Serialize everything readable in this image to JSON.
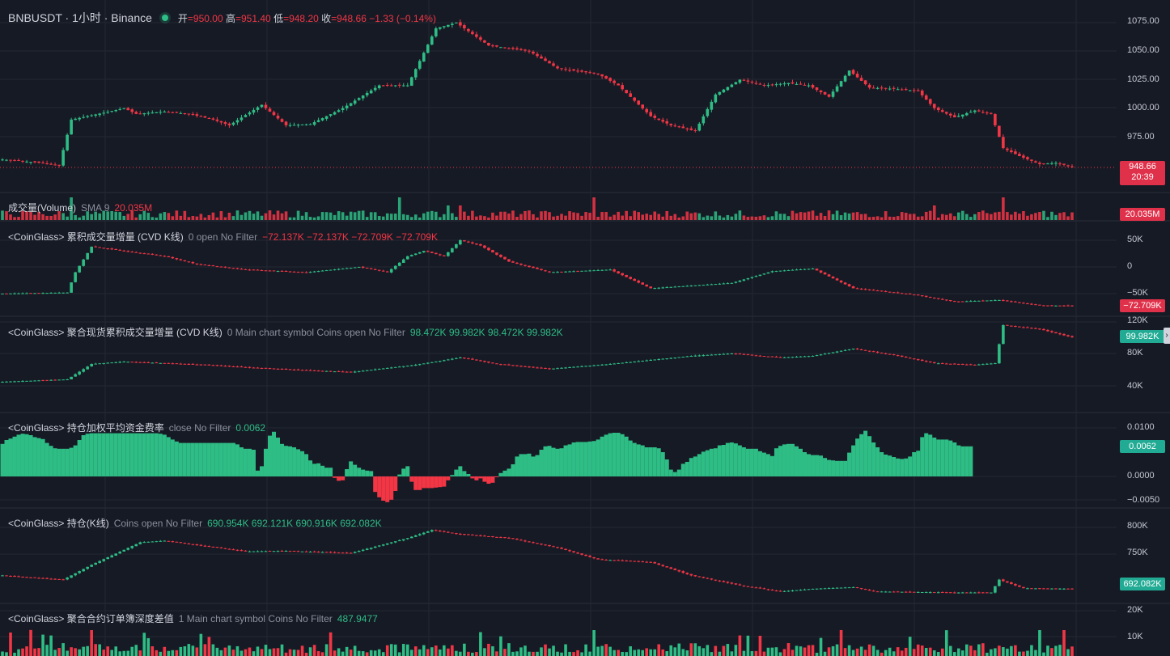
{
  "header": {
    "symbol": "BNBUSDT · 1小时 · Binance",
    "ohlc": [
      {
        "k": "开",
        "v": "=950.00"
      },
      {
        "k": "高",
        "v": "=951.40"
      },
      {
        "k": "低",
        "v": "=948.20"
      },
      {
        "k": "收",
        "v": "=948.66"
      }
    ],
    "change": "−1.33 (−0.14%)"
  },
  "price_pane": {
    "ticks": [
      "1075.00",
      "1050.00",
      "1025.00",
      "1000.00",
      "975.00"
    ],
    "last_price": "948.66",
    "countdown": "20:39"
  },
  "volume_pane": {
    "label": "成交量(Volume)",
    "sma": "SMA 9",
    "value": "20.035M",
    "tag": "20.035M"
  },
  "cvd_pane": {
    "label": "<CoinGlass> 累积成交量增量   (CVD K线)",
    "params": "0 open No Filter",
    "values": "−72.137K  −72.137K  −72.709K  −72.709K",
    "ticks": [
      "50K",
      "0",
      "−50K"
    ],
    "tag": "−72.709K"
  },
  "spot_cvd_pane": {
    "label": "<CoinGlass> 聚合现货累积成交量增量 (CVD K线)",
    "params": "0 Main chart symbol Coins open No Filter",
    "values": "98.472K  99.982K  98.472K  99.982K",
    "ticks": [
      "120K",
      "80K",
      "40K"
    ],
    "tag": "99.982K"
  },
  "funding_pane": {
    "label": "<CoinGlass> 持仓加权平均资金费率",
    "params": "close No Filter",
    "value": "0.0062",
    "ticks": [
      "0.0100",
      "0.0000",
      "−0.0050"
    ],
    "tag": "0.0062"
  },
  "oi_pane": {
    "label": "<CoinGlass> 持仓(K线)",
    "params": "Coins open No Filter",
    "values": "690.954K  692.121K  690.916K  692.082K",
    "ticks": [
      "800K",
      "750K"
    ],
    "tag": "692.082K"
  },
  "depth_pane": {
    "label": "<CoinGlass> 聚合合约订单簿深度差值",
    "params": "1 Main chart symbol Coins No Filter",
    "value": "487.9477",
    "ticks": [
      "20K",
      "10K"
    ]
  },
  "colors": {
    "up": "#2ebd85",
    "down": "#f23645",
    "bg": "#161a25",
    "grid": "#242833"
  },
  "chart_data": {
    "type": "candlestick",
    "price_anchors": [
      [
        0,
        955
      ],
      [
        10,
        952
      ],
      [
        14,
        950
      ],
      [
        17,
        990
      ],
      [
        25,
        996
      ],
      [
        30,
        1000
      ],
      [
        33,
        995
      ],
      [
        40,
        997
      ],
      [
        46,
        995
      ],
      [
        52,
        990
      ],
      [
        56,
        985
      ],
      [
        64,
        1003
      ],
      [
        70,
        985
      ],
      [
        76,
        986
      ],
      [
        84,
        1000
      ],
      [
        93,
        1020
      ],
      [
        100,
        1020
      ],
      [
        107,
        1070
      ],
      [
        112,
        1075
      ],
      [
        120,
        1055
      ],
      [
        130,
        1050
      ],
      [
        137,
        1035
      ],
      [
        147,
        1030
      ],
      [
        152,
        1020
      ],
      [
        160,
        993
      ],
      [
        165,
        985
      ],
      [
        171,
        980
      ],
      [
        176,
        1012
      ],
      [
        182,
        1025
      ],
      [
        188,
        1020
      ],
      [
        194,
        1022
      ],
      [
        199,
        1020
      ],
      [
        204,
        1010
      ],
      [
        209,
        1033
      ],
      [
        214,
        1018
      ],
      [
        220,
        1017
      ],
      [
        226,
        1015
      ],
      [
        230,
        1000
      ],
      [
        235,
        992
      ],
      [
        240,
        998
      ],
      [
        244,
        995
      ],
      [
        247,
        965
      ],
      [
        251,
        958
      ],
      [
        256,
        951
      ],
      [
        260,
        952
      ],
      [
        264,
        948.66
      ]
    ],
    "cvd_anchors": [
      [
        0,
        -50
      ],
      [
        16,
        -48
      ],
      [
        18,
        -10
      ],
      [
        22,
        38
      ],
      [
        30,
        30
      ],
      [
        40,
        20
      ],
      [
        48,
        5
      ],
      [
        60,
        -5
      ],
      [
        75,
        -10
      ],
      [
        88,
        0
      ],
      [
        95,
        -10
      ],
      [
        100,
        20
      ],
      [
        104,
        30
      ],
      [
        109,
        20
      ],
      [
        113,
        50
      ],
      [
        118,
        40
      ],
      [
        125,
        10
      ],
      [
        135,
        -10
      ],
      [
        150,
        -5
      ],
      [
        160,
        -40
      ],
      [
        170,
        -35
      ],
      [
        180,
        -30
      ],
      [
        190,
        -8
      ],
      [
        200,
        -3
      ],
      [
        210,
        -40
      ],
      [
        225,
        -52
      ],
      [
        235,
        -65
      ],
      [
        246,
        -62
      ],
      [
        256,
        -72
      ],
      [
        264,
        -72.709
      ]
    ],
    "spot_cvd_anchors": [
      [
        0,
        45
      ],
      [
        16,
        48
      ],
      [
        22,
        67
      ],
      [
        30,
        70
      ],
      [
        40,
        68
      ],
      [
        50,
        66
      ],
      [
        60,
        63
      ],
      [
        72,
        60
      ],
      [
        86,
        57
      ],
      [
        102,
        66
      ],
      [
        113,
        75
      ],
      [
        122,
        67
      ],
      [
        135,
        61
      ],
      [
        150,
        67
      ],
      [
        170,
        77
      ],
      [
        180,
        80
      ],
      [
        192,
        75
      ],
      [
        200,
        77
      ],
      [
        210,
        86
      ],
      [
        220,
        78
      ],
      [
        230,
        68
      ],
      [
        240,
        66
      ],
      [
        245,
        68
      ],
      [
        247,
        115
      ],
      [
        256,
        110
      ],
      [
        264,
        99.982
      ]
    ],
    "oi_anchors": [
      [
        0,
        710
      ],
      [
        15,
        702
      ],
      [
        22,
        730
      ],
      [
        34,
        772
      ],
      [
        40,
        775
      ],
      [
        50,
        765
      ],
      [
        60,
        755
      ],
      [
        70,
        756
      ],
      [
        86,
        752
      ],
      [
        100,
        780
      ],
      [
        106,
        795
      ],
      [
        112,
        788
      ],
      [
        125,
        780
      ],
      [
        137,
        762
      ],
      [
        147,
        740
      ],
      [
        160,
        735
      ],
      [
        170,
        710
      ],
      [
        183,
        690
      ],
      [
        192,
        680
      ],
      [
        200,
        685
      ],
      [
        210,
        688
      ],
      [
        215,
        680
      ],
      [
        235,
        678
      ],
      [
        244,
        678
      ],
      [
        246,
        702
      ],
      [
        252,
        686
      ],
      [
        264,
        685
      ]
    ],
    "funding_values": [
      0.0067,
      0.0075,
      0.0078,
      0.0082,
      0.0086,
      0.0088,
      0.0087,
      0.0085,
      0.0081,
      0.0079,
      0.0077,
      0.0069,
      0.0063,
      0.0058,
      0.0057,
      0.0057,
      0.0057,
      0.0059,
      0.0064,
      0.0075,
      0.0085,
      0.0088,
      0.0089,
      0.0089,
      0.0089,
      0.0089,
      0.0089,
      0.0089,
      0.0089,
      0.0089,
      0.0089,
      0.0089,
      0.0089,
      0.0089,
      0.0089,
      0.0089,
      0.0089,
      0.0089,
      0.0089,
      0.0088,
      0.0086,
      0.0081,
      0.0076,
      0.0072,
      0.0069,
      0.0069,
      0.0069,
      0.0069,
      0.0069,
      0.0069,
      0.0069,
      0.0069,
      0.0069,
      0.0069,
      0.0069,
      0.0069,
      0.0069,
      0.0069,
      0.0066,
      0.006,
      0.0057,
      0.0057,
      0.0055,
      0.0012,
      0.0021,
      0.0057,
      0.0084,
      0.0092,
      0.008,
      0.0067,
      0.0063,
      0.0062,
      0.006,
      0.0056,
      0.0052,
      0.0046,
      0.0033,
      0.0026,
      0.0027,
      0.0022,
      0.0018,
      0.0018,
      -0.0003,
      -0.0009,
      -0.0008,
      0.0015,
      0.0031,
      0.0024,
      0.0018,
      0.0014,
      0.0012,
      0.0011,
      -0.0032,
      -0.0043,
      -0.005,
      -0.0053,
      -0.0048,
      -0.003,
      0.0004,
      0.0016,
      0.0021,
      -0.0011,
      -0.0028,
      -0.0028,
      -0.0024,
      -0.0024,
      -0.0024,
      -0.0023,
      -0.0022,
      -0.0021,
      -0.0008,
      0.0003,
      0.0014,
      0.0021,
      0.0011,
      0.0005,
      -0.0004,
      -0.0008,
      -0.0004,
      -0.0011,
      -0.0015,
      -0.0013,
      -0.0001,
      0.0007,
      0.0012,
      0.0016,
      0.0025,
      0.0041,
      0.0046,
      0.0046,
      0.0047,
      0.0041,
      0.0044,
      0.0055,
      0.0062,
      0.0063,
      0.0059,
      0.0057,
      0.0058,
      0.0064,
      0.0066,
      0.007,
      0.0071,
      0.0071,
      0.0071,
      0.0072,
      0.0073,
      0.0076,
      0.0082,
      0.0086,
      0.0089,
      0.009,
      0.009,
      0.0087,
      0.0082,
      0.0074,
      0.0069,
      0.0066,
      0.0064,
      0.006,
      0.006,
      0.006,
      0.0058,
      0.005,
      0.0035,
      0.0014,
      0.0009,
      0.0014,
      0.0026,
      0.003,
      0.0038,
      0.0041,
      0.0046,
      0.0051,
      0.0054,
      0.0057,
      0.0058,
      0.0064,
      0.0065,
      0.0069,
      0.007,
      0.0068,
      0.0064,
      0.006,
      0.0057,
      0.0057,
      0.0057,
      0.0052,
      0.0049,
      0.0046,
      0.0042,
      0.0058,
      0.0063,
      0.0066,
      0.0067,
      0.0067,
      0.0062,
      0.0057,
      0.005,
      0.0046,
      0.0044,
      0.0044,
      0.0043,
      0.0038,
      0.0034,
      0.0033,
      0.0032,
      0.0032,
      0.0032,
      0.0049,
      0.0064,
      0.0078,
      0.0087,
      0.0094,
      0.0083,
      0.007,
      0.006,
      0.005,
      0.0045,
      0.0043,
      0.004,
      0.0037,
      0.0036,
      0.0037,
      0.0041,
      0.005,
      0.0053,
      0.0081,
      0.0089,
      0.0086,
      0.008,
      0.0076,
      0.0076,
      0.0076,
      0.0074,
      0.007,
      0.0064,
      0.0062,
      0.0062,
      0.0062
    ],
    "volume_seed": 20.035,
    "depth_seed": 487.9477
  }
}
